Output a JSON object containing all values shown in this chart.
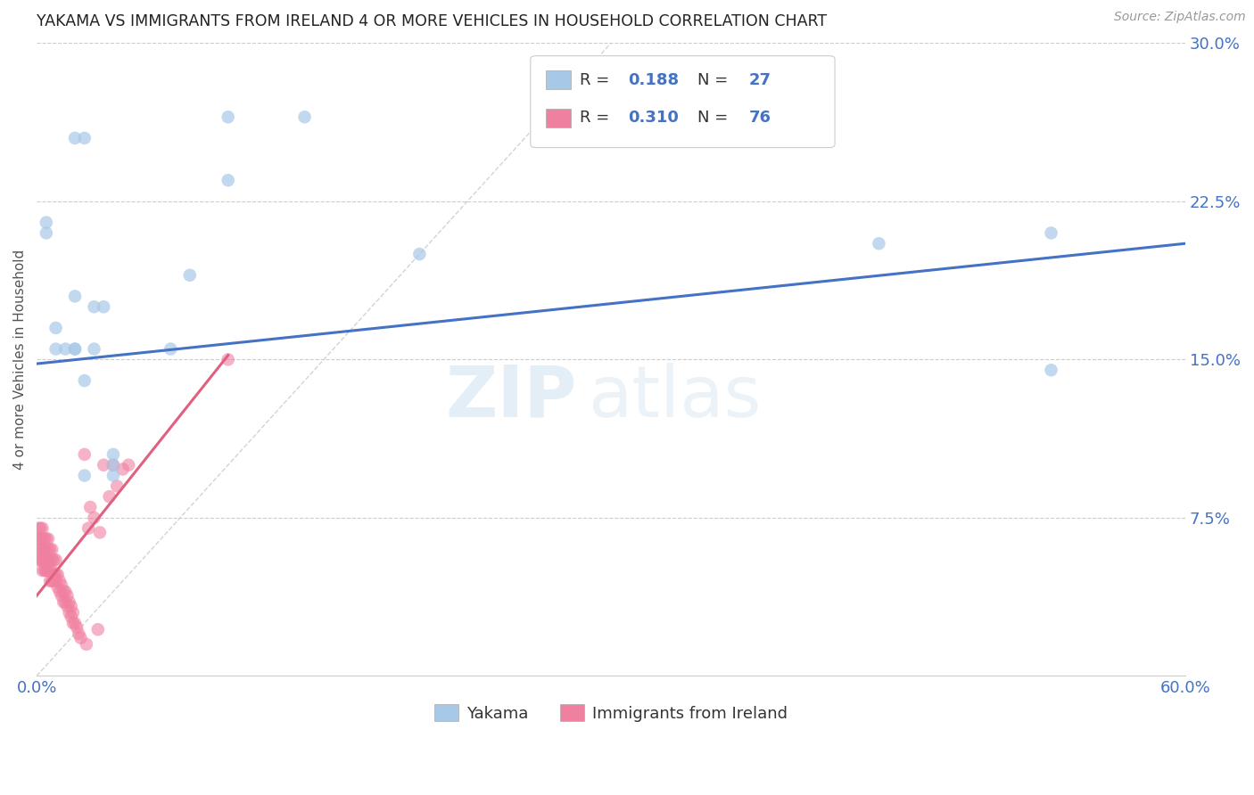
{
  "title": "YAKAMA VS IMMIGRANTS FROM IRELAND 4 OR MORE VEHICLES IN HOUSEHOLD CORRELATION CHART",
  "source": "Source: ZipAtlas.com",
  "ylabel": "4 or more Vehicles in Household",
  "xmin": 0.0,
  "xmax": 0.6,
  "ymin": 0.0,
  "ymax": 0.3,
  "xticks": [
    0.0,
    0.1,
    0.2,
    0.3,
    0.4,
    0.5,
    0.6
  ],
  "xtick_labels": [
    "0.0%",
    "",
    "",
    "",
    "",
    "",
    "60.0%"
  ],
  "yticks": [
    0.0,
    0.075,
    0.15,
    0.225,
    0.3
  ],
  "ytick_labels_right": [
    "",
    "7.5%",
    "15.0%",
    "22.5%",
    "30.0%"
  ],
  "legend_r1": "0.188",
  "legend_n1": "27",
  "legend_r2": "0.310",
  "legend_n2": "76",
  "color_yakama": "#a8c8e8",
  "color_ireland": "#f080a0",
  "color_line_yakama": "#4472c4",
  "color_line_ireland": "#e06080",
  "color_diagonal": "#c8c8c8",
  "background_color": "#ffffff",
  "watermark_zip": "ZIP",
  "watermark_atlas": "atlas",
  "yakama_x": [
    0.005,
    0.005,
    0.015,
    0.02,
    0.025,
    0.01,
    0.01,
    0.02,
    0.02,
    0.02,
    0.03,
    0.03,
    0.035,
    0.025,
    0.025,
    0.04,
    0.04,
    0.04,
    0.07,
    0.08,
    0.1,
    0.1,
    0.14,
    0.2,
    0.44,
    0.53,
    0.53
  ],
  "yakama_y": [
    0.215,
    0.21,
    0.155,
    0.255,
    0.255,
    0.155,
    0.165,
    0.155,
    0.155,
    0.18,
    0.175,
    0.155,
    0.175,
    0.095,
    0.14,
    0.1,
    0.095,
    0.105,
    0.155,
    0.19,
    0.235,
    0.265,
    0.265,
    0.2,
    0.205,
    0.21,
    0.145
  ],
  "ireland_x": [
    0.001,
    0.001,
    0.001,
    0.001,
    0.002,
    0.002,
    0.002,
    0.002,
    0.003,
    0.003,
    0.003,
    0.003,
    0.003,
    0.004,
    0.004,
    0.004,
    0.004,
    0.005,
    0.005,
    0.005,
    0.005,
    0.005,
    0.006,
    0.006,
    0.006,
    0.006,
    0.007,
    0.007,
    0.007,
    0.007,
    0.008,
    0.008,
    0.008,
    0.008,
    0.009,
    0.009,
    0.009,
    0.01,
    0.01,
    0.01,
    0.011,
    0.011,
    0.012,
    0.012,
    0.013,
    0.013,
    0.014,
    0.014,
    0.015,
    0.015,
    0.016,
    0.016,
    0.017,
    0.017,
    0.018,
    0.018,
    0.019,
    0.019,
    0.02,
    0.021,
    0.022,
    0.023,
    0.025,
    0.026,
    0.027,
    0.028,
    0.03,
    0.032,
    0.033,
    0.035,
    0.038,
    0.04,
    0.042,
    0.045,
    0.048,
    0.1
  ],
  "ireland_y": [
    0.06,
    0.065,
    0.07,
    0.055,
    0.06,
    0.065,
    0.055,
    0.07,
    0.055,
    0.06,
    0.065,
    0.05,
    0.07,
    0.055,
    0.06,
    0.05,
    0.065,
    0.05,
    0.055,
    0.06,
    0.05,
    0.065,
    0.055,
    0.06,
    0.05,
    0.065,
    0.05,
    0.055,
    0.06,
    0.045,
    0.05,
    0.055,
    0.045,
    0.06,
    0.048,
    0.055,
    0.045,
    0.048,
    0.055,
    0.045,
    0.042,
    0.048,
    0.04,
    0.045,
    0.038,
    0.043,
    0.035,
    0.04,
    0.035,
    0.04,
    0.033,
    0.038,
    0.03,
    0.035,
    0.028,
    0.033,
    0.025,
    0.03,
    0.025,
    0.023,
    0.02,
    0.018,
    0.105,
    0.015,
    0.07,
    0.08,
    0.075,
    0.022,
    0.068,
    0.1,
    0.085,
    0.1,
    0.09,
    0.098,
    0.1,
    0.15
  ],
  "blue_line_x0": 0.0,
  "blue_line_y0": 0.148,
  "blue_line_x1": 0.6,
  "blue_line_y1": 0.205,
  "pink_line_x0": 0.0,
  "pink_line_y0": 0.038,
  "pink_line_x1": 0.1,
  "pink_line_y1": 0.152
}
